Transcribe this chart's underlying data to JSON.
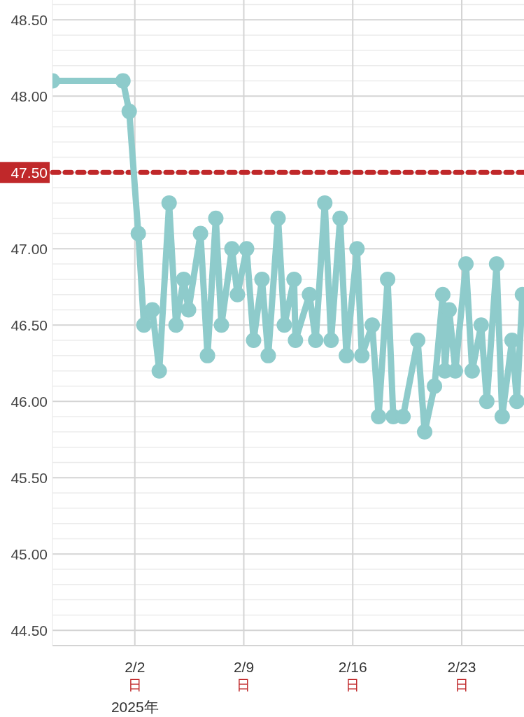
{
  "chart_data": {
    "type": "line",
    "x": [
      "2025-01-27T17:00",
      "2025-02-01T05:40",
      "2025-02-01T15:20",
      "2025-02-02T05:20",
      "2025-02-02T14:00",
      "2025-02-03T03:00",
      "2025-02-03T13:40",
      "2025-02-04T04:50",
      "2025-02-04T15:30",
      "2025-02-05T03:20",
      "2025-02-05T10:50",
      "2025-02-06T05:15",
      "2025-02-06T16:00",
      "2025-02-07T04:50",
      "2025-02-07T13:30",
      "2025-02-08T05:40",
      "2025-02-08T14:10",
      "2025-02-09T04:20",
      "2025-02-09T15:05",
      "2025-02-10T04:00",
      "2025-02-10T13:40",
      "2025-02-11T04:50",
      "2025-02-11T14:25",
      "2025-02-12T05:30",
      "2025-02-12T07:40",
      "2025-02-13T05:15",
      "2025-02-13T14:50",
      "2025-02-14T04:50",
      "2025-02-14T14:35",
      "2025-02-15T04:30",
      "2025-02-15T14:10",
      "2025-02-16T06:30",
      "2025-02-16T14:00",
      "2025-02-17T06:00",
      "2025-02-17T15:50",
      "2025-02-18T05:45",
      "2025-02-18T14:25",
      "2025-02-19T05:30",
      "2025-02-20T04:05",
      "2025-02-20T14:50",
      "2025-02-21T06:00",
      "2025-02-21T18:45",
      "2025-02-21T22:05",
      "2025-02-22T04:35",
      "2025-02-22T14:10",
      "2025-02-23T06:30",
      "2025-02-23T16:05",
      "2025-02-24T06:00",
      "2025-02-24T14:40",
      "2025-02-25T05:45",
      "2025-02-25T14:25",
      "2025-02-26T05:30",
      "2025-02-26T13:00",
      "2025-02-26T21:35"
    ],
    "series": [
      {
        "color": "#8ecbcb",
        "values": [
          48.1,
          48.1,
          47.9,
          47.1,
          46.5,
          46.6,
          46.2,
          47.3,
          46.5,
          46.8,
          46.6,
          47.1,
          46.3,
          47.2,
          46.5,
          47.0,
          46.7,
          47.0,
          46.4,
          46.8,
          46.3,
          47.2,
          46.5,
          46.8,
          46.4,
          46.7,
          46.4,
          47.3,
          46.4,
          47.2,
          46.3,
          47.0,
          46.3,
          46.5,
          45.9,
          46.8,
          45.9,
          45.9,
          46.4,
          45.8,
          46.1,
          46.7,
          46.2,
          46.6,
          46.2,
          46.9,
          46.2,
          46.5,
          46.0,
          46.9,
          45.9,
          46.4,
          46.0,
          46.7
        ]
      }
    ],
    "xlim": [
      "2025-01-27T17:00",
      "2025-02-27T00:00"
    ],
    "xticks": [
      {
        "value": "2025-02-02",
        "label": "2/2\n日"
      },
      {
        "value": "2025-02-09",
        "label": "2/9\n日"
      },
      {
        "value": "2025-02-16",
        "label": "2/16\n日"
      },
      {
        "value": "2025-02-23",
        "label": "2/23\n日"
      }
    ],
    "ylim": [
      44.4,
      48.63
    ],
    "yticks": [
      {
        "value": 44.5,
        "label": "44.50"
      },
      {
        "value": 45,
        "label": "45.00"
      },
      {
        "value": 45.5,
        "label": "45.50"
      },
      {
        "value": 46,
        "label": "46.00"
      },
      {
        "value": 46.5,
        "label": "46.50"
      },
      {
        "value": 47,
        "label": "47.00"
      },
      {
        "value": 47.5,
        "label": null
      },
      {
        "value": 48,
        "label": "48.00"
      },
      {
        "value": 48.5,
        "label": "48.50"
      }
    ],
    "ref_lines": [
      {
        "axis": "y",
        "value": 47.5,
        "label": "47.50",
        "color": "#c0282a",
        "line_style": "dotted"
      }
    ],
    "annotations": [
      "2025年"
    ],
    "grid": true,
    "marker": "circle",
    "line_style": "solid"
  }
}
